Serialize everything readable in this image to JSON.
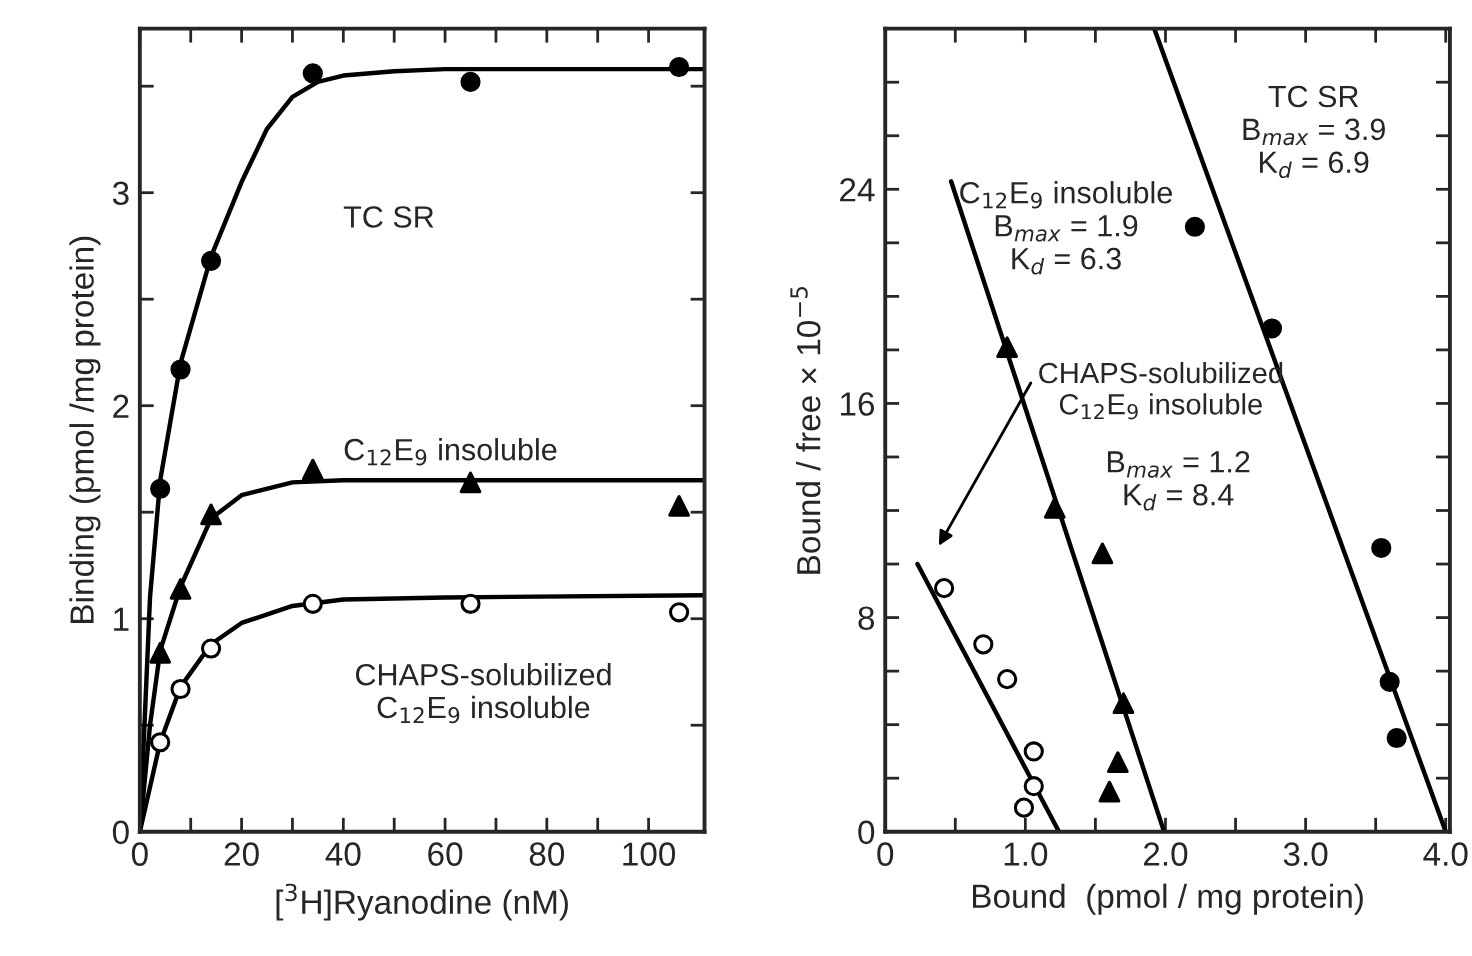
{
  "chart_data": [
    {
      "type": "scatter",
      "xlabel": "[$^{3}$H]Ryanodine (nM)",
      "ylabel": "Binding (pmol /mg protein)",
      "xlim": [
        0,
        111
      ],
      "ylim": [
        0,
        3.77
      ],
      "xticks": [
        0,
        {
          "value": 10,
          "label": null
        },
        20,
        {
          "value": 30,
          "label": null
        },
        40,
        {
          "value": 50,
          "label": null
        },
        60,
        {
          "value": 70,
          "label": null
        },
        80,
        {
          "value": 90,
          "label": null
        },
        100
      ],
      "yticks": [
        0,
        {
          "value": 0.5,
          "label": null
        },
        1,
        {
          "value": 1.5,
          "label": null
        },
        2,
        {
          "value": 2.5,
          "label": null
        },
        3,
        {
          "value": 3.5,
          "label": null
        }
      ],
      "grid": false,
      "legend": false,
      "tick_labels": true,
      "series": [
        {
          "marker": "circle",
          "color": "#000000",
          "x": [
            4,
            8,
            14,
            34,
            65,
            106
          ],
          "values": [
            1.61,
            2.17,
            2.68,
            3.56,
            3.52,
            3.59
          ]
        },
        {
          "marker": "triangle",
          "color": "#000000",
          "x": [
            4,
            8,
            14,
            34,
            65,
            106
          ],
          "values": [
            0.84,
            1.14,
            1.49,
            1.7,
            1.64,
            1.53
          ]
        },
        {
          "marker": "circle",
          "color": "#ffffff",
          "x": [
            4,
            8,
            14,
            34,
            65,
            106
          ],
          "values": [
            0.42,
            0.67,
            0.86,
            1.07,
            1.07,
            1.03
          ]
        },
        {
          "type": "line",
          "line_style": "solid",
          "color": "#000000",
          "x": [
            0,
            2,
            4,
            8,
            14,
            20,
            25,
            30,
            35,
            40,
            50,
            60,
            111
          ],
          "values": [
            0,
            1.1,
            1.65,
            2.2,
            2.7,
            3.05,
            3.3,
            3.45,
            3.52,
            3.55,
            3.57,
            3.58,
            3.58
          ]
        },
        {
          "type": "line",
          "line_style": "solid",
          "color": "#000000",
          "x": [
            0,
            2,
            4,
            8,
            14,
            20,
            30,
            40,
            111
          ],
          "values": [
            0,
            0.5,
            0.85,
            1.15,
            1.47,
            1.58,
            1.64,
            1.65,
            1.65
          ]
        },
        {
          "type": "line",
          "line_style": "solid",
          "color": "#000000",
          "x": [
            0,
            4,
            8,
            14,
            20,
            30,
            40,
            60,
            111
          ],
          "values": [
            0,
            0.42,
            0.68,
            0.88,
            0.98,
            1.06,
            1.09,
            1.1,
            1.11
          ]
        }
      ],
      "annotations": [
        "TC SR",
        "C$_{12}$E$_{9}$ insoluble",
        "CHAPS-solubilized\nC$_{12}$E$_{9}$ insoluble"
      ]
    },
    {
      "type": "scatter",
      "xlabel": "Bound  (pmol / mg protein)",
      "ylabel": "Bound / free × 10$^{−5}$",
      "xlim": [
        0,
        4.03
      ],
      "ylim": [
        0,
        30
      ],
      "xticks": [
        0,
        {
          "value": 0.5,
          "label": null
        },
        {
          "value": 1,
          "label": "1.0"
        },
        {
          "value": 1.5,
          "label": null
        },
        {
          "value": 2,
          "label": "2.0"
        },
        {
          "value": 2.5,
          "label": null
        },
        {
          "value": 3,
          "label": "3.0"
        },
        {
          "value": 3.5,
          "label": null
        },
        {
          "value": 4,
          "label": "4.0"
        }
      ],
      "yticks": [
        0,
        {
          "value": 2,
          "label": null
        },
        {
          "value": 4,
          "label": null
        },
        {
          "value": 6,
          "label": null
        },
        8,
        {
          "value": 10,
          "label": null
        },
        {
          "value": 12,
          "label": null
        },
        {
          "value": 14,
          "label": null
        },
        16,
        {
          "value": 18,
          "label": null
        },
        {
          "value": 20,
          "label": null
        },
        {
          "value": 22,
          "label": null
        },
        24,
        {
          "value": 26,
          "label": null
        },
        {
          "value": 28,
          "label": null
        }
      ],
      "grid": false,
      "legend": false,
      "tick_labels": true,
      "series": [
        {
          "marker": "circle",
          "color": "#000000",
          "x": [
            2.21,
            2.76,
            3.54,
            3.6,
            3.65
          ],
          "values": [
            22.6,
            18.8,
            10.6,
            5.6,
            3.5
          ]
        },
        {
          "marker": "triangle",
          "color": "#000000",
          "x": [
            0.87,
            1.21,
            1.55,
            1.7,
            1.66,
            1.6
          ],
          "values": [
            18.1,
            12.1,
            10.4,
            4.8,
            2.6,
            1.5
          ]
        },
        {
          "marker": "circle",
          "color": "#ffffff",
          "x": [
            0.42,
            0.7,
            0.87,
            1.06,
            1.06,
            0.99
          ],
          "values": [
            9.1,
            7.0,
            5.7,
            3.0,
            1.7,
            0.9
          ]
        },
        {
          "type": "line",
          "line_style": "solid",
          "color": "#000000",
          "x": [
            1.92,
            4.0
          ],
          "values": [
            30,
            0
          ]
        },
        {
          "type": "line",
          "line_style": "solid",
          "color": "#000000",
          "x": [
            0.47,
            1.99
          ],
          "values": [
            24.3,
            0
          ]
        },
        {
          "type": "line",
          "line_style": "solid",
          "color": "#000000",
          "x": [
            0.23,
            1.24
          ],
          "values": [
            10.0,
            0
          ]
        }
      ],
      "annotations": [
        "TC SR\nB$_{max}$ = 3.9\nK$_{d}$ = 6.9",
        "C$_{12}$E$_{9}$ insoluble\nB$_{max}$ = 1.9\nK$_{d}$ = 6.3",
        "CHAPS-solubilized\nC$_{12}$E$_{9}$ insoluble",
        "B$_{max}$ = 1.2\nK$_{d}$ = 8.4"
      ]
    }
  ]
}
